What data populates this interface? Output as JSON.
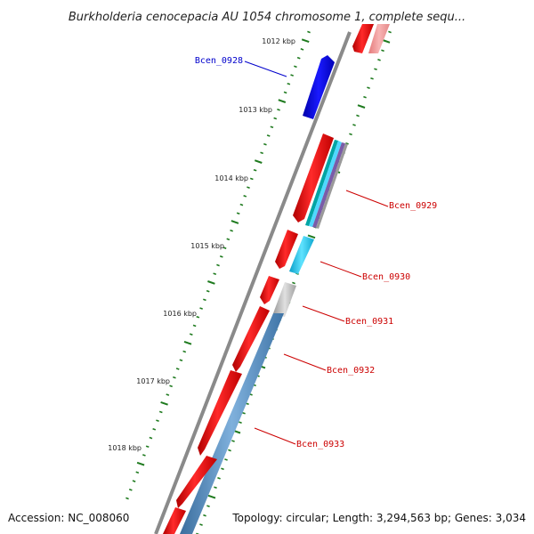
{
  "title": "Burkholderia cenocepacia AU 1054 chromosome 1, complete sequ...",
  "footer": {
    "accession": "Accession: NC_008060",
    "summary": "Topology: circular; Length: 3,294,563 bp; Genes: 3,034"
  },
  "scale_labels": [
    "1012 kbp",
    "1013 kbp",
    "1014 kbp",
    "1015 kbp",
    "1016 kbp",
    "1017 kbp",
    "1018 kbp"
  ],
  "gene_labels": [
    {
      "text": "Bcen_0928",
      "color": "#0000cc"
    },
    {
      "text": "Bcen_0929",
      "color": "#cc0000"
    },
    {
      "text": "Bcen_0930",
      "color": "#cc0000"
    },
    {
      "text": "Bcen_0931",
      "color": "#cc0000"
    },
    {
      "text": "Bcen_0932",
      "color": "#cc0000"
    },
    {
      "text": "Bcen_0933",
      "color": "#cc0000"
    }
  ],
  "colors": {
    "cds_reverse": "#ee0000",
    "cds_forward": "#0000dd",
    "cds_faded": "#f29a9a",
    "cyan_feature": "#22ccee",
    "grey_feature": "#bbbbbb",
    "steel_feature": "#4f86b8",
    "backbone": "#888888",
    "tick": "#1e7a1e"
  }
}
